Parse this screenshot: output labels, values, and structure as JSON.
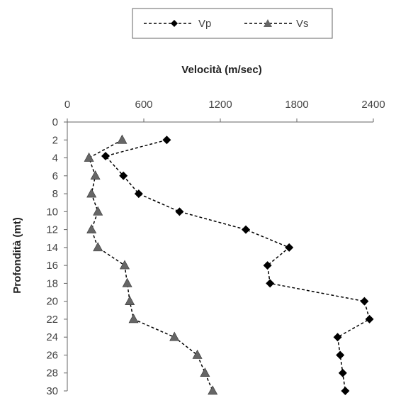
{
  "chart_data": {
    "type": "line",
    "title": "",
    "xlabel": "Velocità (m/sec)",
    "ylabel": "Profondità (mt)",
    "x_axis_position": "top",
    "y_axis_inverted": true,
    "xlim": [
      0,
      2400
    ],
    "ylim": [
      0,
      30
    ],
    "xticks": [
      "0",
      "600",
      "1200",
      "1800",
      "2400"
    ],
    "yticks": [
      "0",
      "2",
      "4",
      "6",
      "8",
      "10",
      "12",
      "14",
      "16",
      "18",
      "20",
      "22",
      "24",
      "26",
      "28",
      "30"
    ],
    "grid": false,
    "legend_position": "top",
    "series": [
      {
        "name": "Vp",
        "marker": "diamond",
        "color": "#000000",
        "line_style": "dashed",
        "points": [
          {
            "x": 780,
            "depth": 2
          },
          {
            "x": 300,
            "depth": 3.8
          },
          {
            "x": 440,
            "depth": 6
          },
          {
            "x": 560,
            "depth": 8
          },
          {
            "x": 880,
            "depth": 10
          },
          {
            "x": 1400,
            "depth": 12
          },
          {
            "x": 1740,
            "depth": 14
          },
          {
            "x": 1570,
            "depth": 16
          },
          {
            "x": 1590,
            "depth": 18
          },
          {
            "x": 2330,
            "depth": 20
          },
          {
            "x": 2370,
            "depth": 22
          },
          {
            "x": 2120,
            "depth": 24
          },
          {
            "x": 2140,
            "depth": 26
          },
          {
            "x": 2160,
            "depth": 28
          },
          {
            "x": 2180,
            "depth": 30
          }
        ]
      },
      {
        "name": "Vs",
        "marker": "triangle",
        "color": "#666666",
        "line_style": "dashed",
        "points": [
          {
            "x": 430,
            "depth": 2
          },
          {
            "x": 170,
            "depth": 4
          },
          {
            "x": 220,
            "depth": 6
          },
          {
            "x": 190,
            "depth": 8
          },
          {
            "x": 240,
            "depth": 10
          },
          {
            "x": 190,
            "depth": 12
          },
          {
            "x": 240,
            "depth": 14
          },
          {
            "x": 450,
            "depth": 16
          },
          {
            "x": 470,
            "depth": 18
          },
          {
            "x": 490,
            "depth": 20
          },
          {
            "x": 520,
            "depth": 22
          },
          {
            "x": 840,
            "depth": 24
          },
          {
            "x": 1020,
            "depth": 26
          },
          {
            "x": 1080,
            "depth": 28
          },
          {
            "x": 1140,
            "depth": 30
          }
        ]
      }
    ]
  }
}
